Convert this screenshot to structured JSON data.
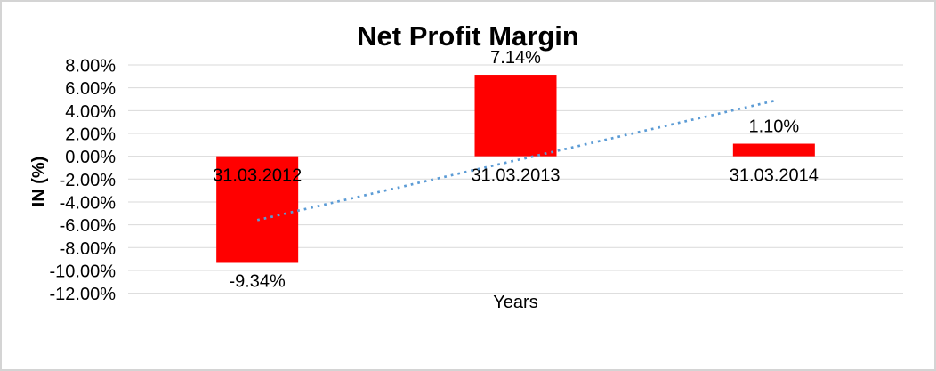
{
  "chart_data": {
    "type": "bar",
    "title": "Net Profit Margin",
    "xlabel": "Years",
    "ylabel": "IN (%)",
    "categories": [
      "31.03.2012",
      "31.03.2013",
      "31.03.2014"
    ],
    "values": [
      -9.34,
      7.14,
      1.1
    ],
    "data_labels": [
      "-9.34%",
      "7.14%",
      "1.10%"
    ],
    "ylim": [
      -12,
      8
    ],
    "grid": true,
    "legend": "none",
    "y_ticks": [
      {
        "value": 8,
        "label": "8.00%"
      },
      {
        "value": 6,
        "label": "6.00%"
      },
      {
        "value": 4,
        "label": "4.00%"
      },
      {
        "value": 2,
        "label": "2.00%"
      },
      {
        "value": 0,
        "label": "0.00%"
      },
      {
        "value": -2,
        "label": "-2.00%"
      },
      {
        "value": -4,
        "label": "-4.00%"
      },
      {
        "value": -6,
        "label": "-6.00%"
      },
      {
        "value": -8,
        "label": "-8.00%"
      },
      {
        "value": -10,
        "label": "-10.00%"
      },
      {
        "value": -12,
        "label": "-12.00%"
      }
    ],
    "trendline": {
      "type": "linear",
      "style": "dotted",
      "start": {
        "category_index": 0,
        "value": -5.59
      },
      "end": {
        "category_index": 2,
        "value": 4.85
      }
    },
    "colors": {
      "bar": "#FF0000",
      "text": "#000000",
      "gridline": "#D9D9D9",
      "trendline": "#5B9BD5",
      "frame_border": "#D4D4D4"
    }
  }
}
